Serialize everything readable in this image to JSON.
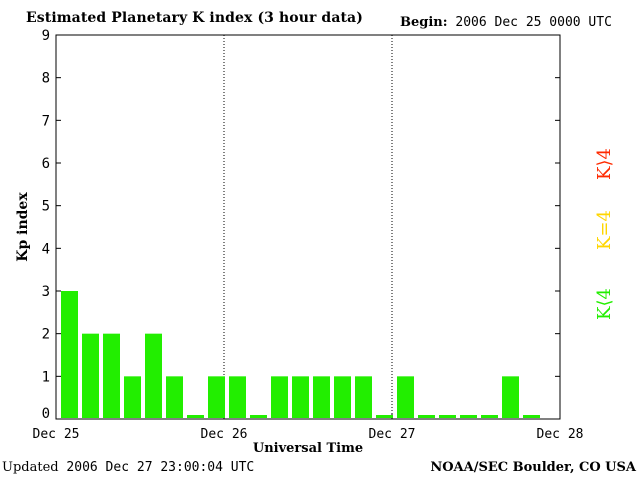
{
  "header": {
    "title": "Estimated Planetary K index (3 hour data)",
    "begin_label": "Begin:",
    "begin_value": "2006 Dec 25 0000 UTC"
  },
  "footer": {
    "updated_label": "Updated",
    "updated_value": "2006 Dec 27 23:00:04 UTC",
    "credit": "NOAA/SEC Boulder, CO USA"
  },
  "legend": [
    {
      "label": "K>4",
      "display": "K⟩4",
      "color": "#ff2a00"
    },
    {
      "label": "K=4",
      "display": "K=4",
      "color": "#ffd600"
    },
    {
      "label": "K<4",
      "display": "K⟨4",
      "color": "#22ee00"
    }
  ],
  "chart_data": {
    "type": "bar",
    "xlabel": "Universal Time",
    "ylabel": "Kp index",
    "ylim": [
      0,
      9
    ],
    "yticks": [
      0,
      1,
      2,
      3,
      4,
      5,
      6,
      7,
      8,
      9
    ],
    "x_tick_labels": [
      "Dec 25",
      "Dec 26",
      "Dec 27",
      "Dec 28"
    ],
    "bar_color": "#22ee00",
    "grid": "dotted vertical lines at day boundaries",
    "intervals_per_day": 8,
    "values": [
      3,
      2,
      2,
      1,
      2,
      1,
      0,
      1,
      1,
      0,
      1,
      1,
      1,
      1,
      1,
      0,
      1,
      0,
      0,
      0,
      0,
      1,
      0
    ]
  }
}
